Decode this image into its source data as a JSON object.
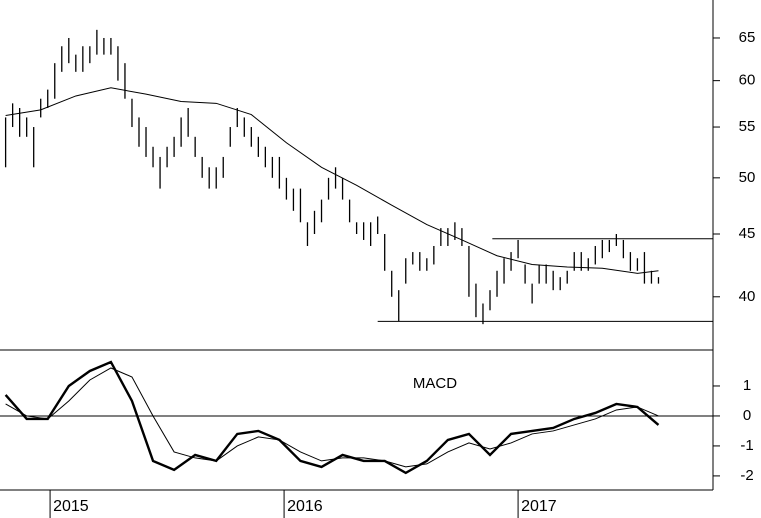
{
  "chart_data": [
    {
      "type": "range-bar",
      "log_scale": true,
      "color": "#000000",
      "xlim": [
        2014.786,
        2017.833
      ],
      "xticks": [
        2015,
        2016,
        2017
      ],
      "ylim": [
        36.2,
        69.8
      ],
      "yticks": [
        40,
        45,
        50,
        55,
        60,
        65
      ],
      "x": [
        2014.81,
        2014.84,
        2014.87,
        2014.9,
        2014.93,
        2014.96,
        2014.99,
        2015.02,
        2015.05,
        2015.08,
        2015.11,
        2015.14,
        2015.17,
        2015.2,
        2015.23,
        2015.26,
        2015.29,
        2015.32,
        2015.35,
        2015.38,
        2015.41,
        2015.44,
        2015.47,
        2015.5,
        2015.53,
        2015.56,
        2015.59,
        2015.62,
        2015.65,
        2015.68,
        2015.71,
        2015.74,
        2015.77,
        2015.8,
        2015.83,
        2015.86,
        2015.89,
        2015.92,
        2015.95,
        2015.98,
        2016.01,
        2016.04,
        2016.07,
        2016.1,
        2016.13,
        2016.16,
        2016.19,
        2016.22,
        2016.25,
        2016.28,
        2016.31,
        2016.34,
        2016.37,
        2016.4,
        2016.43,
        2016.46,
        2016.49,
        2016.52,
        2016.55,
        2016.58,
        2016.61,
        2016.64,
        2016.67,
        2016.7,
        2016.73,
        2016.76,
        2016.79,
        2016.82,
        2016.85,
        2016.88,
        2016.91,
        2016.94,
        2016.97,
        2017,
        2017.03,
        2017.06,
        2017.09,
        2017.12,
        2017.15,
        2017.18,
        2017.21,
        2017.24,
        2017.27,
        2017.3,
        2017.33,
        2017.36,
        2017.39,
        2017.42,
        2017.45,
        2017.48,
        2017.51,
        2017.54,
        2017.57,
        2017.6
      ],
      "high": [
        56,
        57.5,
        57,
        56,
        55,
        58,
        59,
        62,
        64,
        65,
        63,
        64,
        64,
        66,
        65,
        65,
        64,
        62,
        58,
        56,
        55,
        53,
        52,
        53,
        54,
        56,
        57,
        54,
        52,
        51,
        51,
        52,
        55,
        57,
        56,
        55,
        54,
        53,
        52,
        52,
        50,
        49,
        49,
        46,
        47,
        48,
        50,
        51,
        50,
        48,
        46,
        46,
        46,
        46.5,
        45,
        42,
        40.5,
        43,
        43.5,
        43.5,
        43,
        44,
        45.5,
        45.5,
        46,
        45.5,
        44,
        41,
        39.5,
        40.5,
        42,
        43,
        43.5,
        44.5,
        42.5,
        41,
        42.5,
        42.5,
        42,
        41.5,
        42,
        43.5,
        43.5,
        43,
        44,
        44.5,
        44.5,
        45,
        44.5,
        43.5,
        43,
        43.5,
        42,
        41.5
      ],
      "low": [
        51,
        55,
        54,
        54,
        51,
        56,
        57,
        58,
        61,
        62,
        61,
        61,
        62,
        63,
        63,
        63,
        60,
        58,
        55,
        53,
        52,
        51,
        49,
        51,
        52,
        53,
        54,
        52,
        50,
        49,
        49,
        50,
        53,
        55,
        54,
        53,
        52,
        51,
        50,
        49,
        48,
        47,
        46,
        44,
        45,
        46,
        48,
        49,
        48,
        46,
        45,
        44.5,
        44,
        45,
        42,
        40,
        38.2,
        41,
        42.5,
        42,
        42,
        42.5,
        44,
        44,
        44.5,
        44,
        40,
        38.5,
        38,
        39,
        40,
        41,
        42,
        43,
        41,
        39.5,
        41,
        41,
        40.5,
        40.5,
        41,
        42,
        42,
        42,
        42.5,
        43,
        43.5,
        44,
        43,
        42,
        42,
        41,
        41,
        41
      ],
      "ma": {
        "x": [
          2014.81,
          2014.96,
          2015.11,
          2015.26,
          2015.41,
          2015.56,
          2015.71,
          2015.86,
          2016.01,
          2016.16,
          2016.31,
          2016.46,
          2016.61,
          2016.76,
          2016.91,
          2017.06,
          2017.21,
          2017.36,
          2017.51,
          2017.6
        ],
        "values": [
          56.2,
          56.8,
          58.3,
          59.2,
          58.5,
          57.7,
          57.5,
          56.3,
          53.4,
          51,
          49.3,
          47.5,
          45.8,
          44.5,
          43.2,
          42.5,
          42.3,
          42.2,
          41.8,
          42
        ]
      },
      "hlines": [
        {
          "y": 44.6,
          "x_start": 2016.89
        },
        {
          "y": 38.2,
          "x_start": 2016.4
        }
      ]
    },
    {
      "type": "line",
      "title": "MACD",
      "zero_line": true,
      "xlim": [
        2014.786,
        2017.833
      ],
      "xticks": [
        2015,
        2016,
        2017
      ],
      "ylim": [
        -2.47,
        2.2
      ],
      "yticks": [
        -2,
        -1,
        0,
        1
      ],
      "x": [
        2014.81,
        2014.9,
        2014.99,
        2015.08,
        2015.17,
        2015.26,
        2015.35,
        2015.44,
        2015.53,
        2015.62,
        2015.71,
        2015.8,
        2015.89,
        2015.98,
        2016.07,
        2016.16,
        2016.25,
        2016.34,
        2016.43,
        2016.52,
        2016.61,
        2016.7,
        2016.79,
        2016.88,
        2016.97,
        2017.06,
        2017.15,
        2017.24,
        2017.33,
        2017.42,
        2017.51,
        2017.6
      ],
      "series": [
        {
          "color": "#000000",
          "width": 2.4,
          "values": [
            0.7,
            -0.1,
            -0.1,
            1.0,
            1.5,
            1.8,
            0.5,
            -1.5,
            -1.8,
            -1.3,
            -1.5,
            -0.6,
            -0.5,
            -0.8,
            -1.5,
            -1.7,
            -1.3,
            -1.5,
            -1.5,
            -1.9,
            -1.5,
            -0.8,
            -0.6,
            -1.3,
            -0.6,
            -0.5,
            -0.4,
            -0.1,
            0.1,
            0.4,
            0.3,
            -0.3
          ]
        },
        {
          "color": "#000000",
          "width": 1,
          "values": [
            0.4,
            0,
            -0.1,
            0.5,
            1.2,
            1.6,
            1.3,
            0,
            -1.2,
            -1.4,
            -1.5,
            -1,
            -0.7,
            -0.8,
            -1.2,
            -1.5,
            -1.4,
            -1.4,
            -1.5,
            -1.7,
            -1.6,
            -1.2,
            -0.9,
            -1.1,
            -0.9,
            -0.6,
            -0.5,
            -0.3,
            -0.1,
            0.2,
            0.3,
            0
          ]
        }
      ]
    }
  ]
}
